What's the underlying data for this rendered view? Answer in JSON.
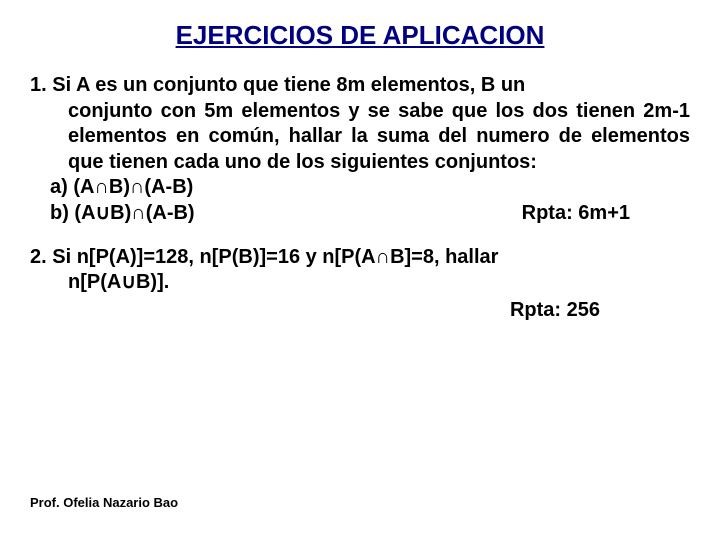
{
  "title": "EJERCICIOS DE APLICACION",
  "problem1": {
    "num": "1.",
    "text": "Si A es un conjunto que tiene 8m elementos, B un conjunto con 5m elementos y se sabe que los dos tienen 2m-1 elementos en común, hallar la suma del numero de elementos que tienen cada uno de los siguientes conjuntos:",
    "part_a": "a) (A∩B)∩(A-B)",
    "part_b": "b) (A∪B)∩(A-B)",
    "answer": "Rpta: 6m+1"
  },
  "problem2": {
    "num": "2.",
    "text": "Si n[P(A)]=128, n[P(B)]=16 y n[P(A∩B]=8, hallar n[P(A∪B)].",
    "answer": "Rpta: 256"
  },
  "footer": "Prof. Ofelia Nazario Bao"
}
